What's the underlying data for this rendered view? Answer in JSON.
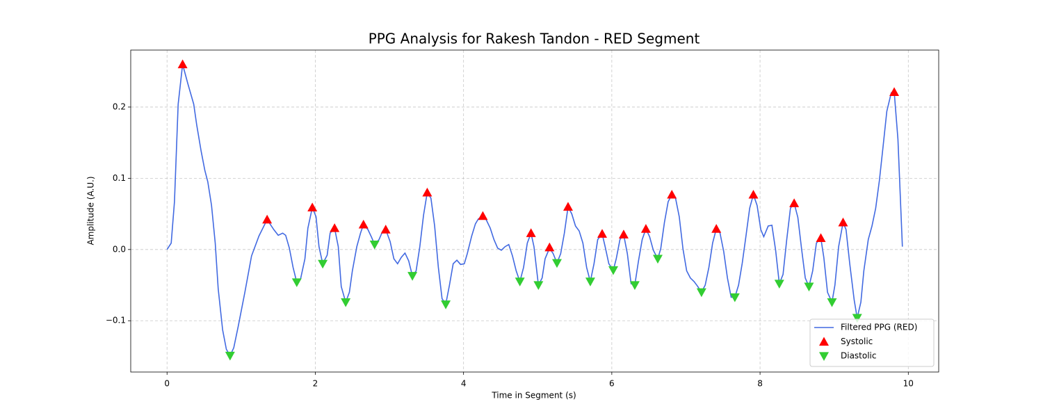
{
  "chart_data": {
    "type": "line",
    "title": "PPG Analysis for Rakesh Tandon - RED Segment",
    "xlabel": "Time in Segment (s)",
    "ylabel": "Amplitude (A.U.)",
    "xlim": [
      -0.49,
      10.41
    ],
    "ylim": [
      -0.172,
      0.28
    ],
    "xticks": [
      0,
      2,
      4,
      6,
      8,
      10
    ],
    "yticks": [
      {
        "value": -0.1,
        "label": "−0.1"
      },
      {
        "value": 0,
        "label": "0.0"
      },
      0.1,
      0.2
    ],
    "grid": true,
    "legend": "lower right",
    "series": [
      {
        "name": "Filtered PPG (RED)",
        "type": "line",
        "color": "#4169e1",
        "x": [
          0,
          0.056,
          0.1,
          0.15,
          0.21,
          0.28,
          0.36,
          0.4,
          0.46,
          0.51,
          0.55,
          0.6,
          0.65,
          0.69,
          0.75,
          0.8,
          0.85,
          0.9,
          0.96,
          1.05,
          1.14,
          1.24,
          1.35,
          1.44,
          1.5,
          1.56,
          1.6,
          1.65,
          1.7,
          1.75,
          1.8,
          1.86,
          1.9,
          1.96,
          2.01,
          2.05,
          2.1,
          2.16,
          2.2,
          2.26,
          2.31,
          2.35,
          2.41,
          2.46,
          2.5,
          2.56,
          2.61,
          2.65,
          2.71,
          2.76,
          2.8,
          2.86,
          2.91,
          2.95,
          3.01,
          3.06,
          3.11,
          3.16,
          3.21,
          3.26,
          3.31,
          3.36,
          3.41,
          3.46,
          3.51,
          3.56,
          3.61,
          3.66,
          3.71,
          3.76,
          3.81,
          3.86,
          3.91,
          3.96,
          4.01,
          4.05,
          4.11,
          4.16,
          4.2,
          4.26,
          4.3,
          4.36,
          4.41,
          4.46,
          4.51,
          4.56,
          4.61,
          4.66,
          4.71,
          4.76,
          4.81,
          4.86,
          4.91,
          4.95,
          5.01,
          5.06,
          5.1,
          5.16,
          5.21,
          5.26,
          5.31,
          5.36,
          5.41,
          5.46,
          5.51,
          5.56,
          5.61,
          5.66,
          5.71,
          5.76,
          5.81,
          5.87,
          5.91,
          5.96,
          6.02,
          6.06,
          6.11,
          6.16,
          6.21,
          6.26,
          6.31,
          6.36,
          6.41,
          6.46,
          6.51,
          6.56,
          6.62,
          6.66,
          6.71,
          6.76,
          6.81,
          6.86,
          6.91,
          6.96,
          7.01,
          7.06,
          7.11,
          7.16,
          7.21,
          7.26,
          7.31,
          7.36,
          7.41,
          7.46,
          7.51,
          7.56,
          7.61,
          7.66,
          7.71,
          7.76,
          7.81,
          7.86,
          7.91,
          7.96,
          8.01,
          8.05,
          8.11,
          8.16,
          8.21,
          8.26,
          8.31,
          8.36,
          8.41,
          8.46,
          8.51,
          8.56,
          8.61,
          8.66,
          8.71,
          8.76,
          8.82,
          8.86,
          8.91,
          8.97,
          9.01,
          9.06,
          9.12,
          9.16,
          9.21,
          9.27,
          9.31,
          9.36,
          9.4,
          9.46,
          9.51,
          9.56,
          9.61,
          9.66,
          9.71,
          9.77,
          9.81,
          9.86,
          9.92
        ],
        "values": [
          0,
          0.009,
          0.067,
          0.204,
          0.26,
          0.233,
          0.204,
          0.175,
          0.138,
          0.111,
          0.095,
          0.062,
          0.009,
          -0.055,
          -0.113,
          -0.14,
          -0.149,
          -0.138,
          -0.108,
          -0.06,
          -0.009,
          0.019,
          0.042,
          0.028,
          0.02,
          0.023,
          0.02,
          0.002,
          -0.025,
          -0.046,
          -0.042,
          -0.013,
          0.03,
          0.059,
          0.046,
          0.004,
          -0.02,
          -0.008,
          0.023,
          0.03,
          0.004,
          -0.052,
          -0.074,
          -0.06,
          -0.03,
          0.004,
          0.023,
          0.035,
          0.028,
          0.017,
          0.007,
          0.014,
          0.026,
          0.028,
          0.011,
          -0.013,
          -0.02,
          -0.011,
          -0.005,
          -0.016,
          -0.037,
          -0.03,
          0.004,
          0.048,
          0.08,
          0.072,
          0.033,
          -0.025,
          -0.069,
          -0.077,
          -0.05,
          -0.02,
          -0.015,
          -0.021,
          -0.02,
          -0.006,
          0.019,
          0.036,
          0.043,
          0.047,
          0.043,
          0.03,
          0.014,
          0.002,
          -0.001,
          0.004,
          0.007,
          -0.009,
          -0.03,
          -0.045,
          -0.025,
          0.009,
          0.023,
          0.004,
          -0.05,
          -0.04,
          -0.013,
          0.002,
          -0.006,
          -0.019,
          -0.006,
          0.023,
          0.06,
          0.05,
          0.033,
          0.026,
          0.009,
          -0.025,
          -0.045,
          -0.02,
          0.014,
          0.022,
          0.004,
          -0.02,
          -0.029,
          -0.013,
          0.014,
          0.021,
          -0.006,
          -0.048,
          -0.05,
          -0.016,
          0.014,
          0.029,
          0.018,
          -0.001,
          -0.013,
          0.001,
          0.038,
          0.067,
          0.077,
          0.072,
          0.046,
          0.001,
          -0.03,
          -0.04,
          -0.045,
          -0.052,
          -0.06,
          -0.05,
          -0.025,
          0.009,
          0.029,
          0.023,
          -0.003,
          -0.04,
          -0.067,
          -0.067,
          -0.05,
          -0.019,
          0.019,
          0.058,
          0.077,
          0.062,
          0.028,
          0.018,
          0.033,
          0.034,
          -0.001,
          -0.048,
          -0.035,
          0.014,
          0.058,
          0.065,
          0.045,
          0.001,
          -0.04,
          -0.052,
          -0.03,
          0.009,
          0.016,
          -0.011,
          -0.06,
          -0.074,
          -0.05,
          0.004,
          0.038,
          0.028,
          -0.02,
          -0.071,
          -0.096,
          -0.074,
          -0.03,
          0.014,
          0.033,
          0.058,
          0.097,
          0.145,
          0.194,
          0.22,
          0.221,
          0.155,
          0.004
        ]
      },
      {
        "name": "Systolic",
        "type": "scatter",
        "marker": "triangle-up",
        "color": "#ff0000",
        "x": [
          0.21,
          1.35,
          1.96,
          2.26,
          2.65,
          2.95,
          3.51,
          4.26,
          4.91,
          5.16,
          5.41,
          5.87,
          6.16,
          6.46,
          6.81,
          7.41,
          7.91,
          8.46,
          8.82,
          9.12,
          9.81
        ],
        "values": [
          0.26,
          0.042,
          0.059,
          0.03,
          0.035,
          0.028,
          0.08,
          0.047,
          0.023,
          0.003,
          0.06,
          0.022,
          0.021,
          0.029,
          0.077,
          0.029,
          0.077,
          0.065,
          0.016,
          0.038,
          0.221
        ]
      },
      {
        "name": "Diastolic",
        "type": "scatter",
        "marker": "triangle-down",
        "color": "#32cd32",
        "x": [
          0.85,
          1.75,
          2.1,
          2.41,
          2.8,
          3.31,
          3.76,
          4.76,
          5.01,
          5.26,
          5.71,
          6.02,
          6.31,
          6.62,
          7.21,
          7.66,
          8.26,
          8.66,
          8.97,
          9.31
        ],
        "values": [
          -0.149,
          -0.046,
          -0.02,
          -0.074,
          0.007,
          -0.037,
          -0.077,
          -0.045,
          -0.05,
          -0.019,
          -0.045,
          -0.029,
          -0.05,
          -0.013,
          -0.06,
          -0.067,
          -0.048,
          -0.052,
          -0.074,
          -0.096
        ]
      }
    ]
  }
}
